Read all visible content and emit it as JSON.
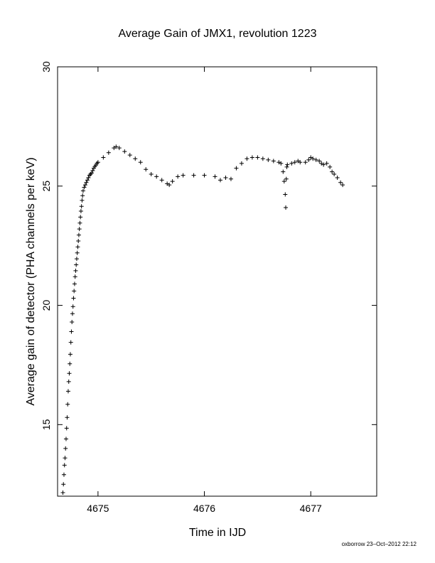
{
  "chart_data": {
    "type": "scatter",
    "title": "Average Gain of JMX1, revolution 1223",
    "xlabel": "Time in IJD",
    "ylabel": "Average gain of detector (PHA channels per keV)",
    "xlim": [
      4674.62,
      4677.62
    ],
    "ylim": [
      12,
      30
    ],
    "x_ticks": [
      4675,
      4676,
      4677
    ],
    "x_tick_labels": [
      "4675",
      "4676",
      "4677"
    ],
    "y_ticks": [
      15,
      20,
      25,
      30
    ],
    "y_tick_labels": [
      "15",
      "20",
      "25",
      "30"
    ],
    "grid": false,
    "marker": "+",
    "series": [
      {
        "points": [
          [
            4674.67,
            12.15
          ],
          [
            4674.675,
            12.5
          ],
          [
            4674.68,
            12.9
          ],
          [
            4674.685,
            13.3
          ],
          [
            4674.69,
            13.6
          ],
          [
            4674.695,
            14.0
          ],
          [
            4674.7,
            14.4
          ],
          [
            4674.705,
            14.85
          ],
          [
            4674.71,
            15.3
          ],
          [
            4674.715,
            15.85
          ],
          [
            4674.72,
            16.4
          ],
          [
            4674.725,
            16.8
          ],
          [
            4674.73,
            17.15
          ],
          [
            4674.735,
            17.55
          ],
          [
            4674.74,
            17.95
          ],
          [
            4674.745,
            18.45
          ],
          [
            4674.75,
            18.9
          ],
          [
            4674.755,
            19.3
          ],
          [
            4674.76,
            19.65
          ],
          [
            4674.765,
            19.95
          ],
          [
            4674.77,
            20.3
          ],
          [
            4674.775,
            20.6
          ],
          [
            4674.78,
            20.9
          ],
          [
            4674.785,
            21.2
          ],
          [
            4674.79,
            21.45
          ],
          [
            4674.795,
            21.7
          ],
          [
            4674.8,
            21.95
          ],
          [
            4674.805,
            22.2
          ],
          [
            4674.81,
            22.45
          ],
          [
            4674.815,
            22.7
          ],
          [
            4674.82,
            22.95
          ],
          [
            4674.825,
            23.2
          ],
          [
            4674.83,
            23.45
          ],
          [
            4674.835,
            23.7
          ],
          [
            4674.84,
            23.95
          ],
          [
            4674.845,
            24.15
          ],
          [
            4674.85,
            24.4
          ],
          [
            4674.855,
            24.6
          ],
          [
            4674.86,
            24.8
          ],
          [
            4674.87,
            24.95
          ],
          [
            4674.88,
            25.05
          ],
          [
            4674.89,
            25.15
          ],
          [
            4674.9,
            25.25
          ],
          [
            4674.91,
            25.35
          ],
          [
            4674.92,
            25.45
          ],
          [
            4674.93,
            25.5
          ],
          [
            4674.94,
            25.55
          ],
          [
            4674.95,
            25.65
          ],
          [
            4674.96,
            25.75
          ],
          [
            4674.97,
            25.82
          ],
          [
            4674.98,
            25.88
          ],
          [
            4674.99,
            25.95
          ],
          [
            4675.0,
            26.0
          ],
          [
            4675.05,
            26.2
          ],
          [
            4675.1,
            26.4
          ],
          [
            4675.15,
            26.6
          ],
          [
            4675.17,
            26.65
          ],
          [
            4675.2,
            26.6
          ],
          [
            4675.25,
            26.45
          ],
          [
            4675.3,
            26.3
          ],
          [
            4675.35,
            26.15
          ],
          [
            4675.4,
            26.0
          ],
          [
            4675.45,
            25.7
          ],
          [
            4675.5,
            25.5
          ],
          [
            4675.55,
            25.4
          ],
          [
            4675.6,
            25.25
          ],
          [
            4675.65,
            25.1
          ],
          [
            4675.67,
            25.05
          ],
          [
            4675.7,
            25.2
          ],
          [
            4675.75,
            25.4
          ],
          [
            4675.8,
            25.45
          ],
          [
            4675.9,
            25.45
          ],
          [
            4676.0,
            25.45
          ],
          [
            4676.1,
            25.4
          ],
          [
            4676.15,
            25.25
          ],
          [
            4676.2,
            25.35
          ],
          [
            4676.25,
            25.3
          ],
          [
            4676.3,
            25.75
          ],
          [
            4676.35,
            25.95
          ],
          [
            4676.4,
            26.15
          ],
          [
            4676.45,
            26.2
          ],
          [
            4676.5,
            26.2
          ],
          [
            4676.55,
            26.15
          ],
          [
            4676.6,
            26.1
          ],
          [
            4676.65,
            26.05
          ],
          [
            4676.7,
            26.0
          ],
          [
            4676.72,
            25.95
          ],
          [
            4676.74,
            25.6
          ],
          [
            4676.75,
            25.2
          ],
          [
            4676.76,
            24.65
          ],
          [
            4676.765,
            24.1
          ],
          [
            4676.77,
            25.3
          ],
          [
            4676.775,
            25.8
          ],
          [
            4676.78,
            25.9
          ],
          [
            4676.82,
            25.95
          ],
          [
            4676.85,
            26.0
          ],
          [
            4676.88,
            26.05
          ],
          [
            4676.9,
            26.0
          ],
          [
            4676.95,
            26.0
          ],
          [
            4676.98,
            26.1
          ],
          [
            4677.0,
            26.2
          ],
          [
            4677.02,
            26.15
          ],
          [
            4677.05,
            26.1
          ],
          [
            4677.08,
            26.05
          ],
          [
            4677.1,
            25.95
          ],
          [
            4677.12,
            25.9
          ],
          [
            4677.15,
            25.95
          ],
          [
            4677.18,
            25.8
          ],
          [
            4677.2,
            25.6
          ],
          [
            4677.22,
            25.5
          ],
          [
            4677.25,
            25.35
          ],
          [
            4677.28,
            25.15
          ],
          [
            4677.3,
            25.05
          ]
        ]
      }
    ]
  },
  "footer_note": "oxborrow 23–Oct–2012 22:12"
}
